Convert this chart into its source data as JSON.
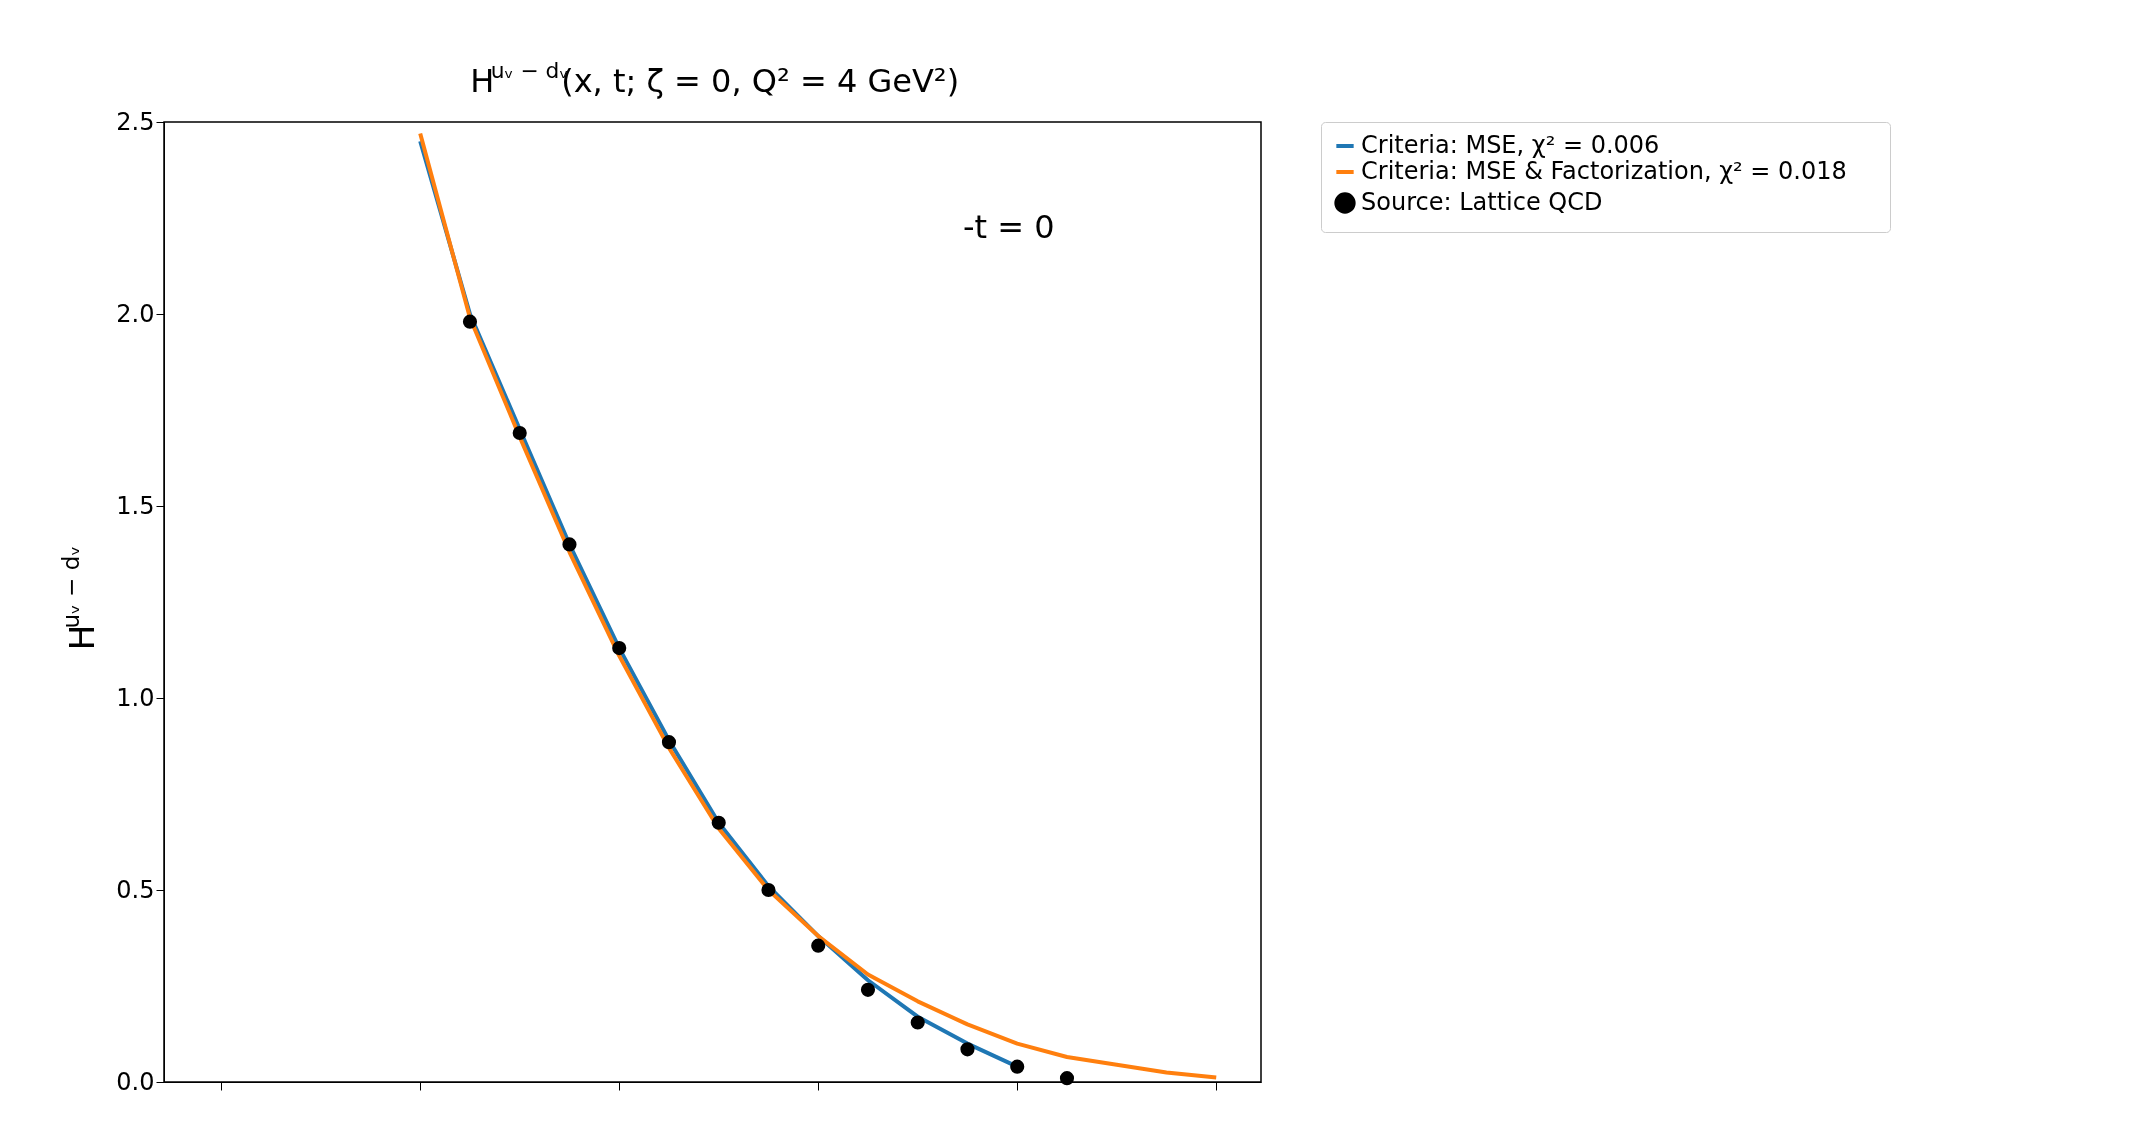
{
  "chart_data": {
    "type": "line",
    "title": "H$^{uᵥ − dᵥ}$(x, t; ζ = 0, Q² = 4 GeV²)",
    "ylabel": "H$^{uᵥ − dᵥ}$",
    "categories": [
      null,
      null,
      null,
      null,
      null,
      null,
      null,
      null,
      null,
      null,
      null,
      null,
      null,
      null,
      null,
      null,
      null,
      null,
      null,
      null,
      null
    ],
    "series": [
      {
        "name": "Criteria: MSE,     χ² = 0.006",
        "color": "#1f77b4",
        "type": "line",
        "line_style": "solid",
        "values": [
          null,
          null,
          null,
          null,
          2.45,
          2.0,
          1.7,
          1.4,
          1.13,
          0.89,
          0.675,
          0.51,
          0.38,
          0.265,
          0.17,
          0.1,
          0.04,
          null,
          null,
          null,
          null
        ]
      },
      {
        "name": "Criteria: MSE & Factorization,     χ² = 0.018",
        "color": "#ff7f0e",
        "type": "line",
        "line_style": "solid",
        "values": [
          null,
          null,
          null,
          null,
          2.47,
          1.99,
          1.68,
          1.38,
          1.11,
          0.87,
          0.66,
          0.5,
          0.38,
          0.28,
          0.21,
          0.15,
          0.1,
          0.065,
          0.045,
          0.025,
          0.012
        ]
      },
      {
        "name": "Source: Lattice QCD",
        "color": "#000000",
        "type": "scatter",
        "marker": "circle",
        "values": [
          null,
          null,
          null,
          null,
          null,
          1.98,
          1.69,
          1.4,
          1.13,
          0.885,
          0.675,
          0.5,
          0.355,
          0.24,
          0.155,
          0.085,
          0.04,
          0.01,
          null,
          null,
          null
        ]
      }
    ],
    "ylim": [
      0,
      2.5
    ],
    "yticks": [
      {
        "value": 0,
        "label": "0.0"
      },
      0.5,
      {
        "value": 1,
        "label": "1.0"
      },
      1.5,
      {
        "value": 2,
        "label": "2.0"
      },
      2.5
    ],
    "grid": false,
    "legend": "top right",
    "annotations": [
      "-t = 0"
    ]
  }
}
